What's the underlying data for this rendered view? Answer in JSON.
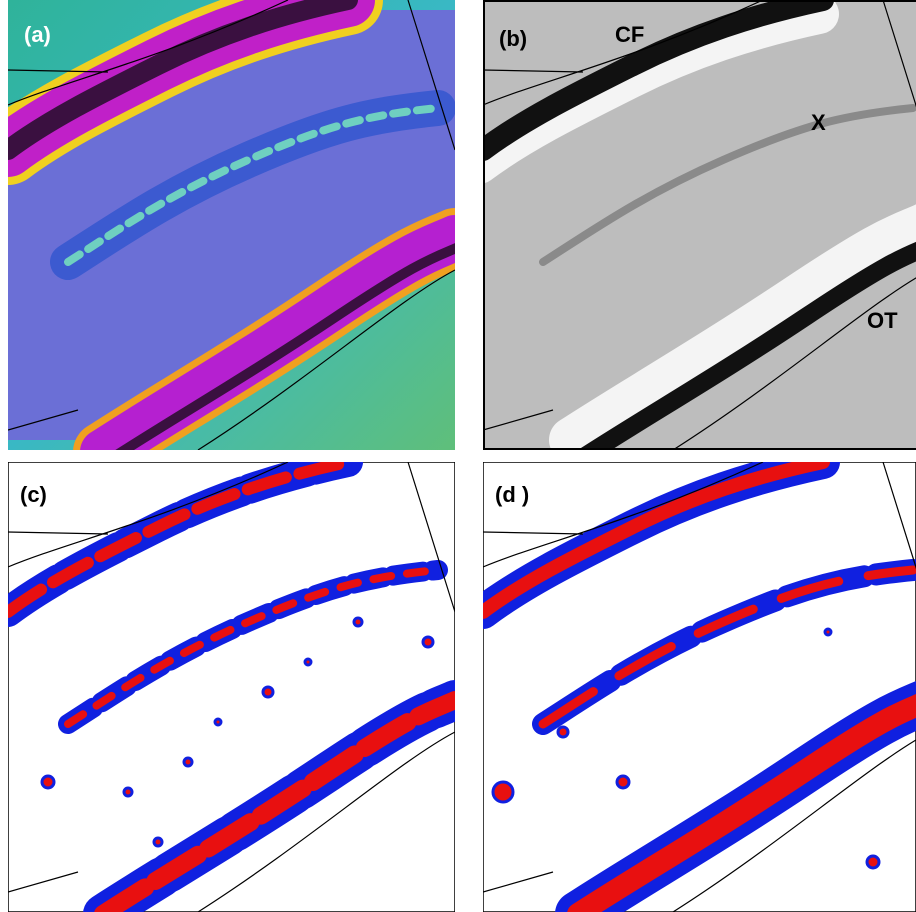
{
  "panels": [
    {
      "label": "(a)"
    },
    {
      "label": "(b)",
      "annotations": [
        "CF",
        "X",
        "OT"
      ]
    },
    {
      "label": "(c)"
    },
    {
      "label": "(d )"
    }
  ]
}
